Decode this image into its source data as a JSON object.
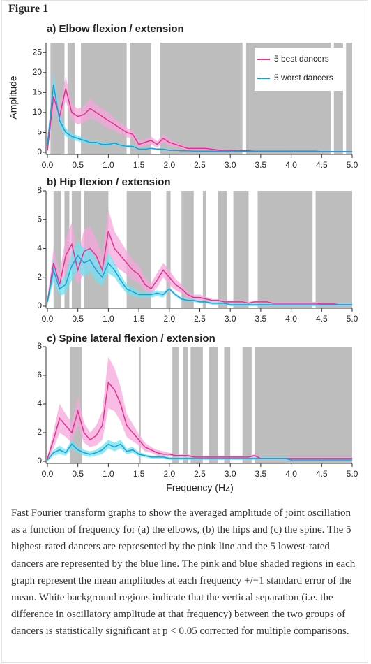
{
  "figure_label": "Figure 1",
  "chart_data": [
    {
      "type": "line",
      "title": "a) Elbow flexion / extension",
      "y_label": "Amplitude",
      "legend": true,
      "legend_position": "upper right",
      "x": [
        0,
        0.1,
        0.2,
        0.3,
        0.4,
        0.5,
        0.6,
        0.7,
        0.8,
        0.9,
        1,
        1.1,
        1.2,
        1.3,
        1.4,
        1.5,
        1.6,
        1.7,
        1.8,
        1.9,
        2,
        2.1,
        2.2,
        2.3,
        2.4,
        2.5,
        2.6,
        2.7,
        2.8,
        2.9,
        3,
        3.1,
        3.2,
        3.3,
        3.4,
        3.5,
        3.6,
        3.7,
        3.8,
        3.9,
        4,
        4.1,
        4.2,
        4.3,
        4.4,
        4.5,
        4.6,
        4.7,
        4.8,
        4.9,
        5
      ],
      "xlim": [
        0,
        5
      ],
      "ylim": [
        0,
        27.5
      ],
      "xticks": [
        {
          "value": 0,
          "label": "0.0"
        },
        0.5,
        {
          "value": 1,
          "label": "1.0"
        },
        1.5,
        {
          "value": 2,
          "label": "2.0"
        },
        2.5,
        {
          "value": 3,
          "label": "3.0"
        },
        3.5,
        {
          "value": 4,
          "label": "4.0"
        },
        4.5,
        {
          "value": 5,
          "label": "5.0"
        }
      ],
      "yticks": [
        0,
        5,
        10,
        15,
        20,
        25
      ],
      "shaded_regions": [
        [
          0.05,
          0.28
        ],
        [
          0.33,
          0.45
        ],
        [
          0.55,
          1.3
        ],
        [
          1.35,
          1.7
        ],
        [
          1.85,
          3.2
        ],
        [
          3.26,
          4.65
        ],
        [
          4.7,
          4.85
        ],
        [
          4.9,
          5
        ]
      ],
      "shade_color": "#bdbdbd",
      "series": [
        {
          "name": "5 best dancers",
          "color": "#e6308a",
          "band_color": "#f6a6dc",
          "values": [
            0.5,
            14,
            9,
            16,
            10,
            9,
            9.5,
            11,
            10,
            9,
            8,
            7,
            6,
            5,
            4.5,
            2,
            2.5,
            3,
            2,
            3.5,
            2.5,
            2,
            1.5,
            1,
            1,
            1,
            1,
            0.8,
            0.6,
            0.5,
            0.5,
            0.4,
            0.4,
            0.4,
            0.3,
            0.3,
            0.3,
            0.3,
            0.3,
            0.3,
            0.3,
            0.3,
            0.3,
            0.3,
            0.3,
            0.2,
            0.2,
            0.2,
            0.2,
            0.2,
            0.2
          ],
          "error": [
            0.5,
            3,
            2,
            3,
            2,
            2,
            2,
            2.5,
            2,
            2,
            2,
            1.5,
            1.5,
            1.2,
            1,
            0.8,
            0.8,
            1,
            0.8,
            1,
            0.8,
            0.6,
            0.5,
            0.4,
            0.4,
            0.4,
            0.4,
            0.3,
            0.3,
            0.2,
            0.2,
            0.2,
            0.2,
            0.2,
            0.2,
            0.2,
            0.2,
            0.2,
            0.2,
            0.2,
            0.1,
            0.1,
            0.1,
            0.1,
            0.1,
            0.1,
            0.1,
            0.1,
            0.1,
            0.1,
            0.1
          ]
        },
        {
          "name": "5 worst dancers",
          "color": "#1a9fdc",
          "band_color": "#6fe3ef",
          "values": [
            2,
            17,
            8,
            5,
            4,
            3.5,
            3,
            2.5,
            2.5,
            2,
            2,
            2.3,
            1.8,
            1.5,
            1.5,
            0.8,
            0.8,
            1,
            0.8,
            0.8,
            0.5,
            0.5,
            0.4,
            0.4,
            0.3,
            0.3,
            0.3,
            0.3,
            0.3,
            0.3,
            0.2,
            0.2,
            0.2,
            0.2,
            0.2,
            0.2,
            0.2,
            0.2,
            0.2,
            0.2,
            0.2,
            0.2,
            0.2,
            0.2,
            0.2,
            0.2,
            0.2,
            0.2,
            0.2,
            0.2,
            0.2
          ],
          "error": [
            0.5,
            3,
            1.5,
            1,
            0.8,
            0.7,
            0.6,
            0.5,
            0.5,
            0.4,
            0.4,
            0.4,
            0.3,
            0.3,
            0.3,
            0.2,
            0.2,
            0.2,
            0.2,
            0.2,
            0.1,
            0.1,
            0.1,
            0.1,
            0.1,
            0.1,
            0.1,
            0.1,
            0.1,
            0.1,
            0.1,
            0.1,
            0.1,
            0.1,
            0.1,
            0.1,
            0.1,
            0.1,
            0.1,
            0.1,
            0.1,
            0.1,
            0.1,
            0.1,
            0.1,
            0.1,
            0.1,
            0.1,
            0.1,
            0.1,
            0.1
          ]
        }
      ]
    },
    {
      "type": "line",
      "title": "b) Hip flexion / extension",
      "x": [
        0,
        0.1,
        0.2,
        0.3,
        0.4,
        0.5,
        0.6,
        0.7,
        0.8,
        0.9,
        1,
        1.1,
        1.2,
        1.3,
        1.4,
        1.5,
        1.6,
        1.7,
        1.8,
        1.9,
        2,
        2.1,
        2.2,
        2.3,
        2.4,
        2.5,
        2.6,
        2.7,
        2.8,
        2.9,
        3,
        3.1,
        3.2,
        3.3,
        3.4,
        3.5,
        3.6,
        3.7,
        3.8,
        3.9,
        4,
        4.1,
        4.2,
        4.3,
        4.4,
        4.5,
        4.6,
        4.7,
        4.8,
        4.9,
        5
      ],
      "xlim": [
        0,
        5
      ],
      "ylim": [
        0,
        8
      ],
      "xticks": [
        {
          "value": 0,
          "label": "0.0"
        },
        0.5,
        {
          "value": 1,
          "label": "1.0"
        },
        1.5,
        {
          "value": 2,
          "label": "2.0"
        },
        2.5,
        {
          "value": 3,
          "label": "3.0"
        },
        3.5,
        {
          "value": 4,
          "label": "4.0"
        },
        4.5,
        {
          "value": 5,
          "label": "5.0"
        }
      ],
      "yticks": [
        0,
        2,
        4,
        6,
        8
      ],
      "shaded_regions": [
        [
          0.1,
          0.22
        ],
        [
          0.28,
          0.36
        ],
        [
          0.4,
          0.55
        ],
        [
          0.6,
          1
        ],
        [
          1.3,
          1.7
        ],
        [
          1.95,
          2.02
        ],
        [
          2.2,
          2.4
        ],
        [
          2.55,
          2.6
        ],
        [
          2.8,
          2.95
        ],
        [
          3.05,
          3.3
        ],
        [
          3.45,
          4.35
        ],
        [
          4.4,
          5
        ]
      ],
      "shade_color": "#bdbdbd",
      "series": [
        {
          "color": "#e6308a",
          "band_color": "#f6a6dc",
          "values": [
            0.3,
            3,
            1.5,
            3.5,
            4.3,
            2.5,
            3.8,
            4,
            3.5,
            2.5,
            5.2,
            4,
            3.5,
            3,
            2.5,
            2.2,
            1.5,
            1.2,
            1.8,
            2.5,
            2,
            1.5,
            1.2,
            0.8,
            0.6,
            0.6,
            0.5,
            0.4,
            0.4,
            0.3,
            0.3,
            0.3,
            0.3,
            0.2,
            0.3,
            0.3,
            0.3,
            0.2,
            0.2,
            0.2,
            0.2,
            0.2,
            0.2,
            0.2,
            0.2,
            0.15,
            0.15,
            0.15,
            0.1,
            0.1,
            0.1
          ],
          "error": [
            0.2,
            1,
            0.8,
            1.2,
            1.5,
            1,
            1.5,
            1.5,
            1.2,
            1,
            1.5,
            1.2,
            1,
            0.8,
            0.7,
            0.6,
            0.5,
            0.4,
            0.5,
            0.5,
            0.5,
            0.4,
            0.3,
            0.2,
            0.2,
            0.2,
            0.15,
            0.1,
            0.1,
            0.1,
            0.1,
            0.1,
            0.1,
            0.1,
            0.1,
            0.1,
            0.1,
            0.1,
            0.1,
            0.1,
            0.1,
            0.1,
            0.1,
            0.1,
            0.1,
            0.1,
            0.1,
            0.1,
            0.1,
            0.1,
            0.1
          ]
        },
        {
          "color": "#1a9fdc",
          "band_color": "#6fe3ef",
          "values": [
            0.3,
            2.5,
            1.2,
            1.5,
            2.8,
            3.5,
            3,
            3.2,
            2.5,
            2,
            3,
            2.5,
            1.8,
            1.2,
            1,
            0.8,
            0.8,
            0.8,
            0.9,
            0.8,
            1.2,
            0.8,
            0.5,
            0.4,
            0.4,
            0.3,
            0.3,
            0.2,
            0.2,
            0.2,
            0.1,
            0.1,
            0.1,
            0.1,
            0.1,
            0.1,
            0.1,
            0.1,
            0.1,
            0.1,
            0.1,
            0.1,
            0.1,
            0.1,
            0.1,
            0.1,
            0.1,
            0.1,
            0.1,
            0.1,
            0.1
          ],
          "error": [
            0.2,
            0.8,
            0.5,
            0.6,
            1,
            1,
            1,
            0.8,
            0.8,
            0.6,
            0.7,
            0.5,
            0.4,
            0.3,
            0.3,
            0.2,
            0.2,
            0.2,
            0.2,
            0.2,
            0.1,
            0.1,
            0.1,
            0.1,
            0.1,
            0.1,
            0.1,
            0.1,
            0.1,
            0.1,
            0.1,
            0.1,
            0.1,
            0.1,
            0.1,
            0.1,
            0.1,
            0.1,
            0.1,
            0.1,
            0.1,
            0.1,
            0.1,
            0.1,
            0.1,
            0.1,
            0.1,
            0.1,
            0.1,
            0.1,
            0.1
          ]
        }
      ]
    },
    {
      "type": "line",
      "title": "c) Spine lateral flexion / extension",
      "x_label": "Frequency (Hz)",
      "x": [
        0,
        0.1,
        0.2,
        0.3,
        0.4,
        0.5,
        0.6,
        0.7,
        0.8,
        0.9,
        1,
        1.1,
        1.2,
        1.3,
        1.4,
        1.5,
        1.6,
        1.7,
        1.8,
        1.9,
        2,
        2.1,
        2.2,
        2.3,
        2.4,
        2.5,
        2.6,
        2.7,
        2.8,
        2.9,
        3,
        3.1,
        3.2,
        3.3,
        3.4,
        3.5,
        3.6,
        3.7,
        3.8,
        3.9,
        4,
        4.1,
        4.2,
        4.3,
        4.4,
        4.5,
        4.6,
        4.7,
        4.8,
        4.9,
        5
      ],
      "xlim": [
        0,
        5
      ],
      "ylim": [
        0,
        8
      ],
      "xticks": [
        {
          "value": 0,
          "label": "0.0"
        },
        0.5,
        {
          "value": 1,
          "label": "1.0"
        },
        1.5,
        {
          "value": 2,
          "label": "2.0"
        },
        2.5,
        {
          "value": 3,
          "label": "3.0"
        },
        3.5,
        {
          "value": 4,
          "label": "4.0"
        },
        4.5,
        {
          "value": 5,
          "label": "5.0"
        }
      ],
      "yticks": [
        0,
        2,
        4,
        6,
        8
      ],
      "shaded_regions": [
        [
          0.37,
          0.57
        ],
        [
          1.5,
          1.53
        ],
        [
          2.05,
          2.15
        ],
        [
          2.22,
          2.3
        ],
        [
          2.35,
          2.55
        ],
        [
          2.65,
          2.8
        ],
        [
          2.9,
          3
        ],
        [
          3.2,
          3.35
        ],
        [
          3.4,
          5
        ]
      ],
      "shade_color": "#bdbdbd",
      "series": [
        {
          "color": "#e6308a",
          "band_color": "#f6a6dc",
          "values": [
            0.2,
            1.5,
            3,
            2.5,
            2,
            3.5,
            2,
            1.5,
            1.8,
            2.5,
            5.5,
            5,
            4,
            2.5,
            2,
            1.5,
            1,
            0.8,
            0.6,
            0.5,
            0.5,
            0.4,
            0.4,
            0.4,
            0.3,
            0.3,
            0.3,
            0.3,
            0.3,
            0.3,
            0.3,
            0.3,
            0.3,
            0.3,
            0.4,
            0.2,
            0.2,
            0.2,
            0.2,
            0.2,
            0.2,
            0.2,
            0.2,
            0.2,
            0.2,
            0.2,
            0.2,
            0.2,
            0.2,
            0.2,
            0.2
          ],
          "error": [
            0.1,
            0.6,
            1,
            0.8,
            0.7,
            1,
            0.7,
            0.5,
            0.7,
            1,
            1.8,
            1.5,
            1.2,
            0.8,
            0.6,
            0.4,
            0.3,
            0.2,
            0.2,
            0.2,
            0.1,
            0.1,
            0.1,
            0.1,
            0.1,
            0.1,
            0.1,
            0.1,
            0.1,
            0.1,
            0.1,
            0.1,
            0.1,
            0.1,
            0.1,
            0.1,
            0.1,
            0.1,
            0.1,
            0.1,
            0.1,
            0.1,
            0.1,
            0.1,
            0.1,
            0.1,
            0.1,
            0.1,
            0.1,
            0.1,
            0.1
          ]
        },
        {
          "color": "#1a9fdc",
          "band_color": "#6fe3ef",
          "values": [
            0.1,
            0.6,
            0.8,
            0.6,
            1.2,
            0.8,
            0.6,
            0.5,
            0.6,
            0.8,
            1.2,
            1,
            1.2,
            0.7,
            0.8,
            0.5,
            0.4,
            0.3,
            0.3,
            0.3,
            0.2,
            0.2,
            0.2,
            0.2,
            0.2,
            0.2,
            0.2,
            0.2,
            0.2,
            0.2,
            0.2,
            0.2,
            0.2,
            0.2,
            0.2,
            0.2,
            0.2,
            0.2,
            0.2,
            0.2,
            0.1,
            0.1,
            0.1,
            0.1,
            0.1,
            0.1,
            0.1,
            0.1,
            0.1,
            0.1,
            0.1
          ],
          "error": [
            0.1,
            0.2,
            0.3,
            0.2,
            0.3,
            0.2,
            0.2,
            0.2,
            0.2,
            0.3,
            0.3,
            0.3,
            0.3,
            0.2,
            0.2,
            0.15,
            0.1,
            0.1,
            0.1,
            0.1,
            0.1,
            0.1,
            0.1,
            0.1,
            0.1,
            0.1,
            0.1,
            0.1,
            0.1,
            0.1,
            0.1,
            0.1,
            0.1,
            0.1,
            0.1,
            0.1,
            0.1,
            0.1,
            0.1,
            0.1,
            0.1,
            0.1,
            0.1,
            0.1,
            0.1,
            0.1,
            0.1,
            0.1,
            0.1,
            0.1,
            0.1
          ]
        }
      ]
    }
  ],
  "caption": "Fast Fourier transform graphs to show the averaged amplitude of joint oscillation as a function of frequency for (a) the elbows, (b) the hips and (c) the spine. The 5 highest-rated dancers are represented by the pink line and the 5 lowest-rated dancers are represented by the blue line. The pink and blue shaded regions in each graph represent the mean amplitudes at each frequency +/−1 standard error of the mean. White background regions indicate that the vertical separation (i.e. the difference in oscillatory amplitude at that frequency) between the two groups of dancers is statistically significant at p < 0.05 corrected for multiple comparisons."
}
